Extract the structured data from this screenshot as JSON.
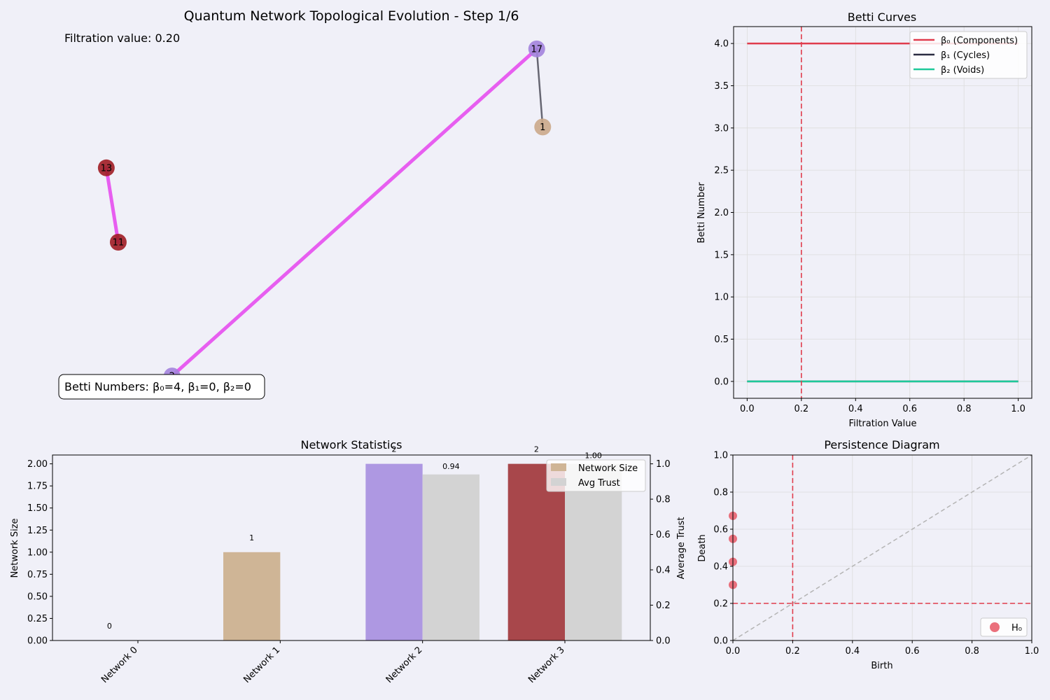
{
  "colors": {
    "background": "#f0f0f8",
    "grid": "#dcdcdc",
    "axis": "#000000",
    "betti0": "#e03c4c",
    "betti1": "#2b2d42",
    "betti2": "#1fc99a",
    "filtration_marker": "#e03c4c",
    "h0_points": "#e8606e",
    "diagonal": "#b4b4b4"
  },
  "chart_data": [
    {
      "id": "network_graph",
      "type": "network",
      "title": "Quantum Network Topological Evolution - Step 1/6",
      "filtration_label": "Filtration value: 0.20",
      "betti_label": "Betti Numbers: β₀=4, β₁=0, β₂=0",
      "xlim": [
        0,
        1
      ],
      "ylim": [
        0,
        1
      ],
      "nodes": [
        {
          "id": "17",
          "x": 0.81,
          "y": 0.94,
          "color": "#a383dd"
        },
        {
          "id": "1",
          "x": 0.82,
          "y": 0.73,
          "color": "#cba98a"
        },
        {
          "id": "13",
          "x": 0.09,
          "y": 0.62,
          "color": "#a01c24"
        },
        {
          "id": "11",
          "x": 0.11,
          "y": 0.42,
          "color": "#a01c24"
        },
        {
          "id": "2",
          "x": 0.2,
          "y": 0.06,
          "color": "#a383dd"
        }
      ],
      "edges": [
        {
          "source": "2",
          "target": "17",
          "color": "#e75ef0",
          "width": 5
        },
        {
          "source": "13",
          "target": "11",
          "color": "#e75ef0",
          "width": 5
        },
        {
          "source": "17",
          "target": "1",
          "color": "#666672",
          "width": 2.5
        }
      ]
    },
    {
      "id": "betti_curves",
      "type": "line",
      "title": "Betti Curves",
      "xlabel": "Filtration Value",
      "ylabel": "Betti Number",
      "xlim": [
        -0.05,
        1.05
      ],
      "ylim": [
        -0.2,
        4.2
      ],
      "xticks": [
        0.0,
        0.2,
        0.4,
        0.6,
        0.8,
        1.0
      ],
      "xtick_labels": [
        "0.0",
        "0.2",
        "0.4",
        "0.6",
        "0.8",
        "1.0"
      ],
      "yticks": [
        0.0,
        0.5,
        1.0,
        1.5,
        2.0,
        2.5,
        3.0,
        3.5,
        4.0
      ],
      "ytick_labels": [
        "0.0",
        "0.5",
        "1.0",
        "1.5",
        "2.0",
        "2.5",
        "3.0",
        "3.5",
        "4.0"
      ],
      "grid": true,
      "legend_position": "top-right",
      "current_filtration": 0.2,
      "series": [
        {
          "name": "β₀ (Components)",
          "color": "#e03c4c",
          "x": [
            0,
            1
          ],
          "y": [
            4,
            4
          ]
        },
        {
          "name": "β₁ (Cycles)",
          "color": "#2b2d42",
          "x": [
            0,
            1
          ],
          "y": [
            0,
            0
          ]
        },
        {
          "name": "β₂ (Voids)",
          "color": "#1fc99a",
          "x": [
            0,
            1
          ],
          "y": [
            0,
            0
          ]
        }
      ]
    },
    {
      "id": "network_statistics",
      "type": "bar",
      "title": "Network Statistics",
      "ylabel": "Network Size",
      "ylabel_right": "Average Trust",
      "categories": [
        "Network 0",
        "Network 1",
        "Network 2",
        "Network 3"
      ],
      "ylim": [
        0,
        2.1
      ],
      "ylim_right": [
        0,
        1.05
      ],
      "yticks": [
        0.0,
        0.25,
        0.5,
        0.75,
        1.0,
        1.25,
        1.5,
        1.75,
        2.0
      ],
      "ytick_labels": [
        "0.00",
        "0.25",
        "0.50",
        "0.75",
        "1.00",
        "1.25",
        "1.50",
        "1.75",
        "2.00"
      ],
      "yticks_right": [
        0.0,
        0.2,
        0.4,
        0.6,
        0.8,
        1.0
      ],
      "ytick_labels_right": [
        "0.0",
        "0.2",
        "0.4",
        "0.6",
        "0.8",
        "1.0"
      ],
      "legend_position": "top-right",
      "series": [
        {
          "name": "Network Size",
          "axis": "left",
          "values": [
            0,
            1,
            2,
            2
          ],
          "labels": [
            "0",
            "1",
            "2",
            "2"
          ],
          "colors": [
            "#cfb596",
            "#cfb596",
            "#ae98e2",
            "#a8474b"
          ]
        },
        {
          "name": "Avg Trust",
          "axis": "right",
          "values": [
            0,
            0,
            0.94,
            1.0
          ],
          "labels": [
            "",
            "",
            "0.94",
            "1.00"
          ],
          "colors": [
            "#d3d3d3",
            "#d3d3d3",
            "#d3d3d3",
            "#d3d3d3"
          ]
        }
      ]
    },
    {
      "id": "persistence_diagram",
      "type": "scatter",
      "title": "Persistence Diagram",
      "xlabel": "Birth",
      "ylabel": "Death",
      "xlim": [
        0,
        1
      ],
      "ylim": [
        0,
        1
      ],
      "xticks": [
        0.0,
        0.2,
        0.4,
        0.6,
        0.8,
        1.0
      ],
      "xtick_labels": [
        "0.0",
        "0.2",
        "0.4",
        "0.6",
        "0.8",
        "1.0"
      ],
      "yticks": [
        0.0,
        0.2,
        0.4,
        0.6,
        0.8,
        1.0
      ],
      "ytick_labels": [
        "0.0",
        "0.2",
        "0.4",
        "0.6",
        "0.8",
        "1.0"
      ],
      "grid": true,
      "legend_position": "bottom-right",
      "current_filtration": 0.2,
      "series": [
        {
          "name": "H₀",
          "color": "#e8606e",
          "points": [
            [
              0,
              0.3
            ],
            [
              0,
              0.424
            ],
            [
              0,
              0.548
            ],
            [
              0,
              0.672
            ]
          ]
        }
      ]
    }
  ]
}
